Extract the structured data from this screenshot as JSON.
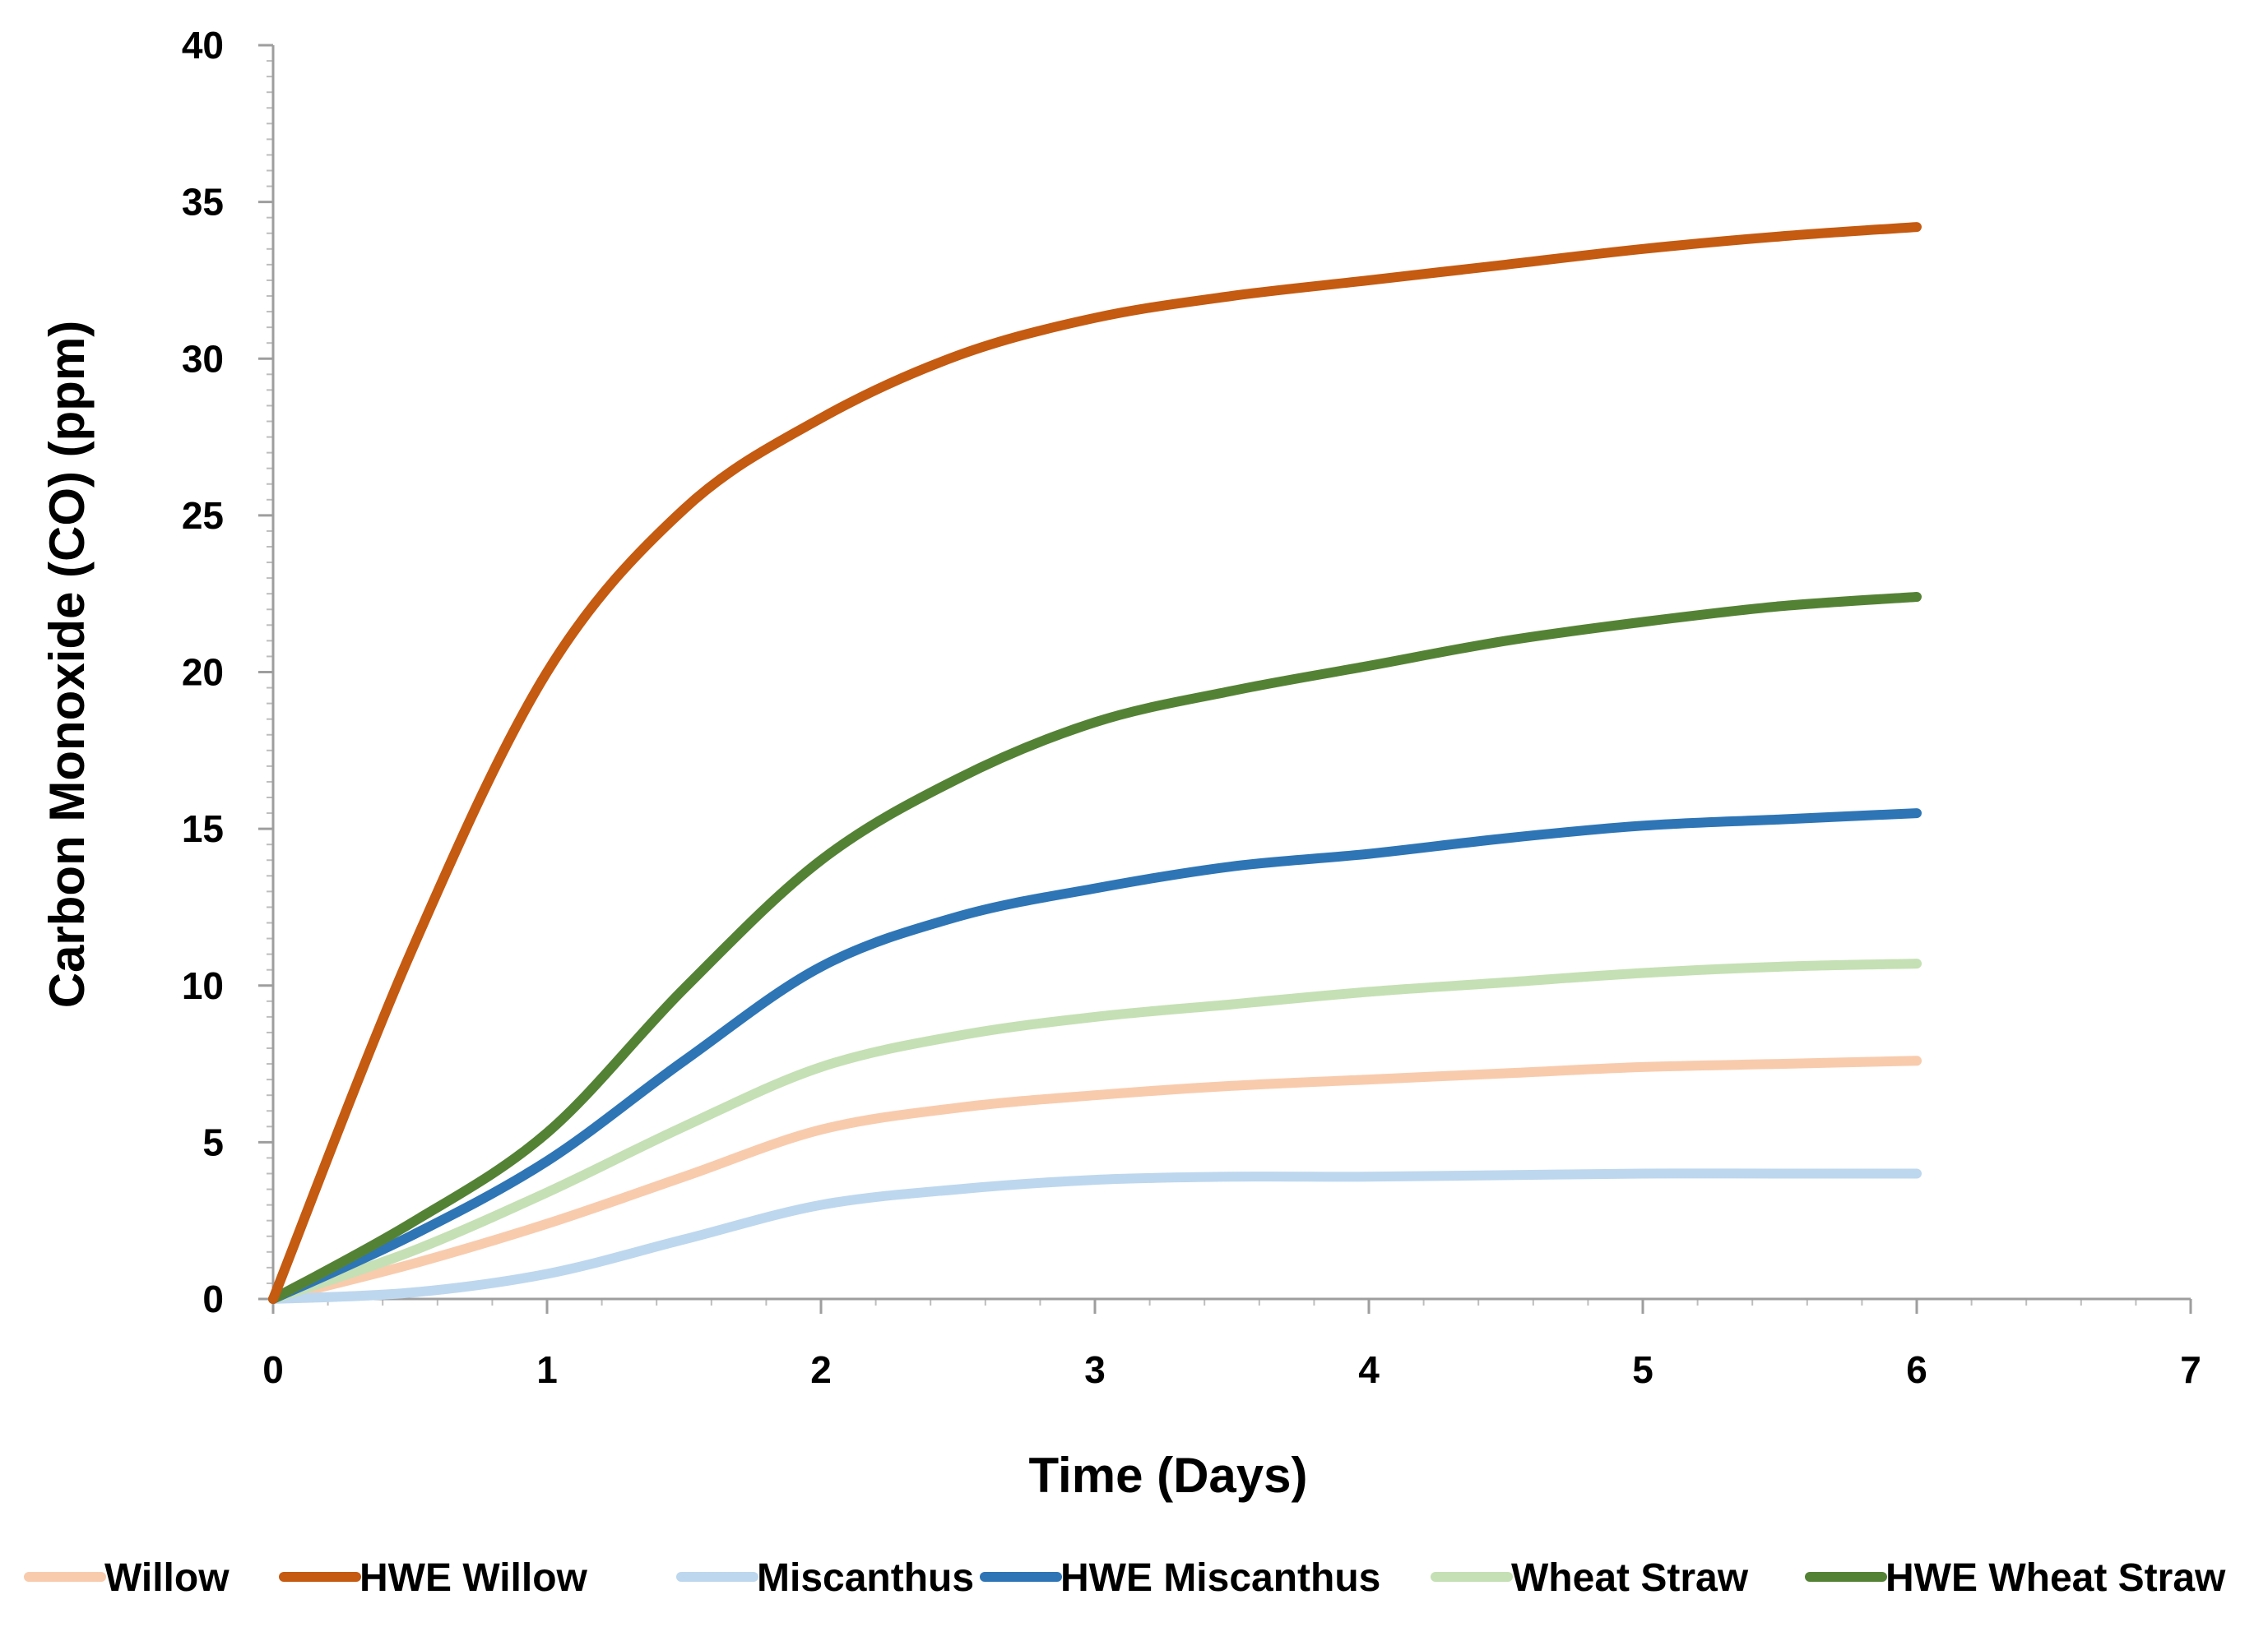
{
  "chart_data": {
    "type": "line",
    "title": "",
    "xlabel": "Time (Days)",
    "ylabel": "Carbon Monoxide (CO) (ppm)",
    "xlim": [
      0,
      7
    ],
    "ylim": [
      0,
      40
    ],
    "x_ticks": [
      "0",
      "1",
      "2",
      "3",
      "4",
      "5",
      "6",
      "7"
    ],
    "y_ticks": [
      "0",
      "5",
      "10",
      "15",
      "20",
      "25",
      "30",
      "35",
      "40"
    ],
    "grid": false,
    "legend_position": "bottom",
    "series": [
      {
        "name": "Willow",
        "color": "#f8cbad",
        "x": [
          0,
          0.5,
          1,
          1.5,
          2,
          2.5,
          3,
          3.5,
          4,
          4.5,
          5,
          5.5,
          6
        ],
        "values": [
          0,
          1.1,
          2.4,
          3.9,
          5.4,
          6.1,
          6.5,
          6.8,
          7.0,
          7.2,
          7.4,
          7.5,
          7.6
        ]
      },
      {
        "name": "HWE Willow",
        "color": "#c55a11",
        "x": [
          0,
          0.5,
          1,
          1.5,
          2,
          2.5,
          3,
          3.5,
          4,
          4.5,
          5,
          5.5,
          6
        ],
        "values": [
          0,
          11,
          20,
          25.2,
          28.1,
          30.1,
          31.3,
          32.0,
          32.5,
          33.0,
          33.5,
          33.9,
          34.2
        ]
      },
      {
        "name": "Miscanthus",
        "color": "#bdd7ee",
        "x": [
          0,
          0.5,
          1,
          1.5,
          2,
          2.5,
          3,
          3.5,
          4,
          4.5,
          5,
          5.5,
          6
        ],
        "values": [
          0,
          0.2,
          0.8,
          1.9,
          3.0,
          3.5,
          3.8,
          3.9,
          3.9,
          3.95,
          4.0,
          4.0,
          4.0
        ]
      },
      {
        "name": "HWE Miscanthus",
        "color": "#2e75b6",
        "x": [
          0,
          0.5,
          1,
          1.5,
          2,
          2.5,
          3,
          3.5,
          4,
          4.5,
          5,
          5.5,
          6
        ],
        "values": [
          0,
          2.0,
          4.4,
          7.6,
          10.6,
          12.2,
          13.1,
          13.8,
          14.2,
          14.7,
          15.1,
          15.3,
          15.5
        ]
      },
      {
        "name": "Wheat Straw",
        "color": "#c5e0b4",
        "x": [
          0,
          0.5,
          1,
          1.5,
          2,
          2.5,
          3,
          3.5,
          4,
          4.5,
          5,
          5.5,
          6
        ],
        "values": [
          0,
          1.5,
          3.4,
          5.5,
          7.4,
          8.4,
          9.0,
          9.4,
          9.8,
          10.1,
          10.4,
          10.6,
          10.7
        ]
      },
      {
        "name": "HWE Wheat Straw",
        "color": "#548235",
        "x": [
          0,
          0.5,
          1,
          1.5,
          2,
          2.5,
          3,
          3.5,
          4,
          4.5,
          5,
          5.5,
          6
        ],
        "values": [
          0,
          2.4,
          5.3,
          9.9,
          14.0,
          16.6,
          18.4,
          19.4,
          20.2,
          21.0,
          21.6,
          22.1,
          22.4
        ]
      }
    ]
  }
}
